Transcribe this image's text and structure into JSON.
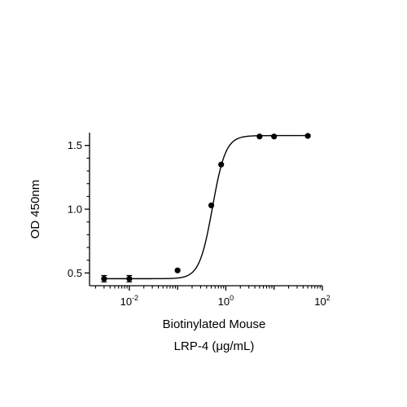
{
  "chart_data": {
    "type": "scatter",
    "title": "",
    "xlabel": [
      "Biotinylated Mouse",
      "LRP-4 (μg/mL)"
    ],
    "ylabel": "OD 450nm",
    "x_scale": "log10",
    "xlim": [
      0.0015,
      100
    ],
    "ylim": [
      0.4,
      1.6
    ],
    "x_ticks": [
      {
        "value": 0.01,
        "base": "10",
        "exp": "-2"
      },
      {
        "value": 1,
        "base": "10",
        "exp": "0"
      },
      {
        "value": 100,
        "base": "10",
        "exp": "2"
      }
    ],
    "y_ticks": [
      {
        "value": 0.5,
        "label": "0.5"
      },
      {
        "value": 1.0,
        "label": "1.0"
      },
      {
        "value": 1.5,
        "label": "1.5"
      }
    ],
    "points": [
      {
        "x": 0.003,
        "y": 0.455,
        "err": 0.025
      },
      {
        "x": 0.01,
        "y": 0.455,
        "err": 0.025
      },
      {
        "x": 0.1,
        "y": 0.52,
        "err": 0
      },
      {
        "x": 0.5,
        "y": 1.03,
        "err": 0
      },
      {
        "x": 0.8,
        "y": 1.35,
        "err": 0
      },
      {
        "x": 5,
        "y": 1.57,
        "err": 0
      },
      {
        "x": 10,
        "y": 1.57,
        "err": 0
      },
      {
        "x": 50,
        "y": 1.575,
        "err": 0
      }
    ],
    "fit_curve": {
      "type": "4PL",
      "bottom": 0.455,
      "top": 1.577,
      "ec50": 0.53,
      "hill": 3.2
    },
    "grid": false,
    "legend": "none",
    "colors": {
      "axis": "#000000",
      "marker": "#000000",
      "curve": "#000000"
    }
  }
}
